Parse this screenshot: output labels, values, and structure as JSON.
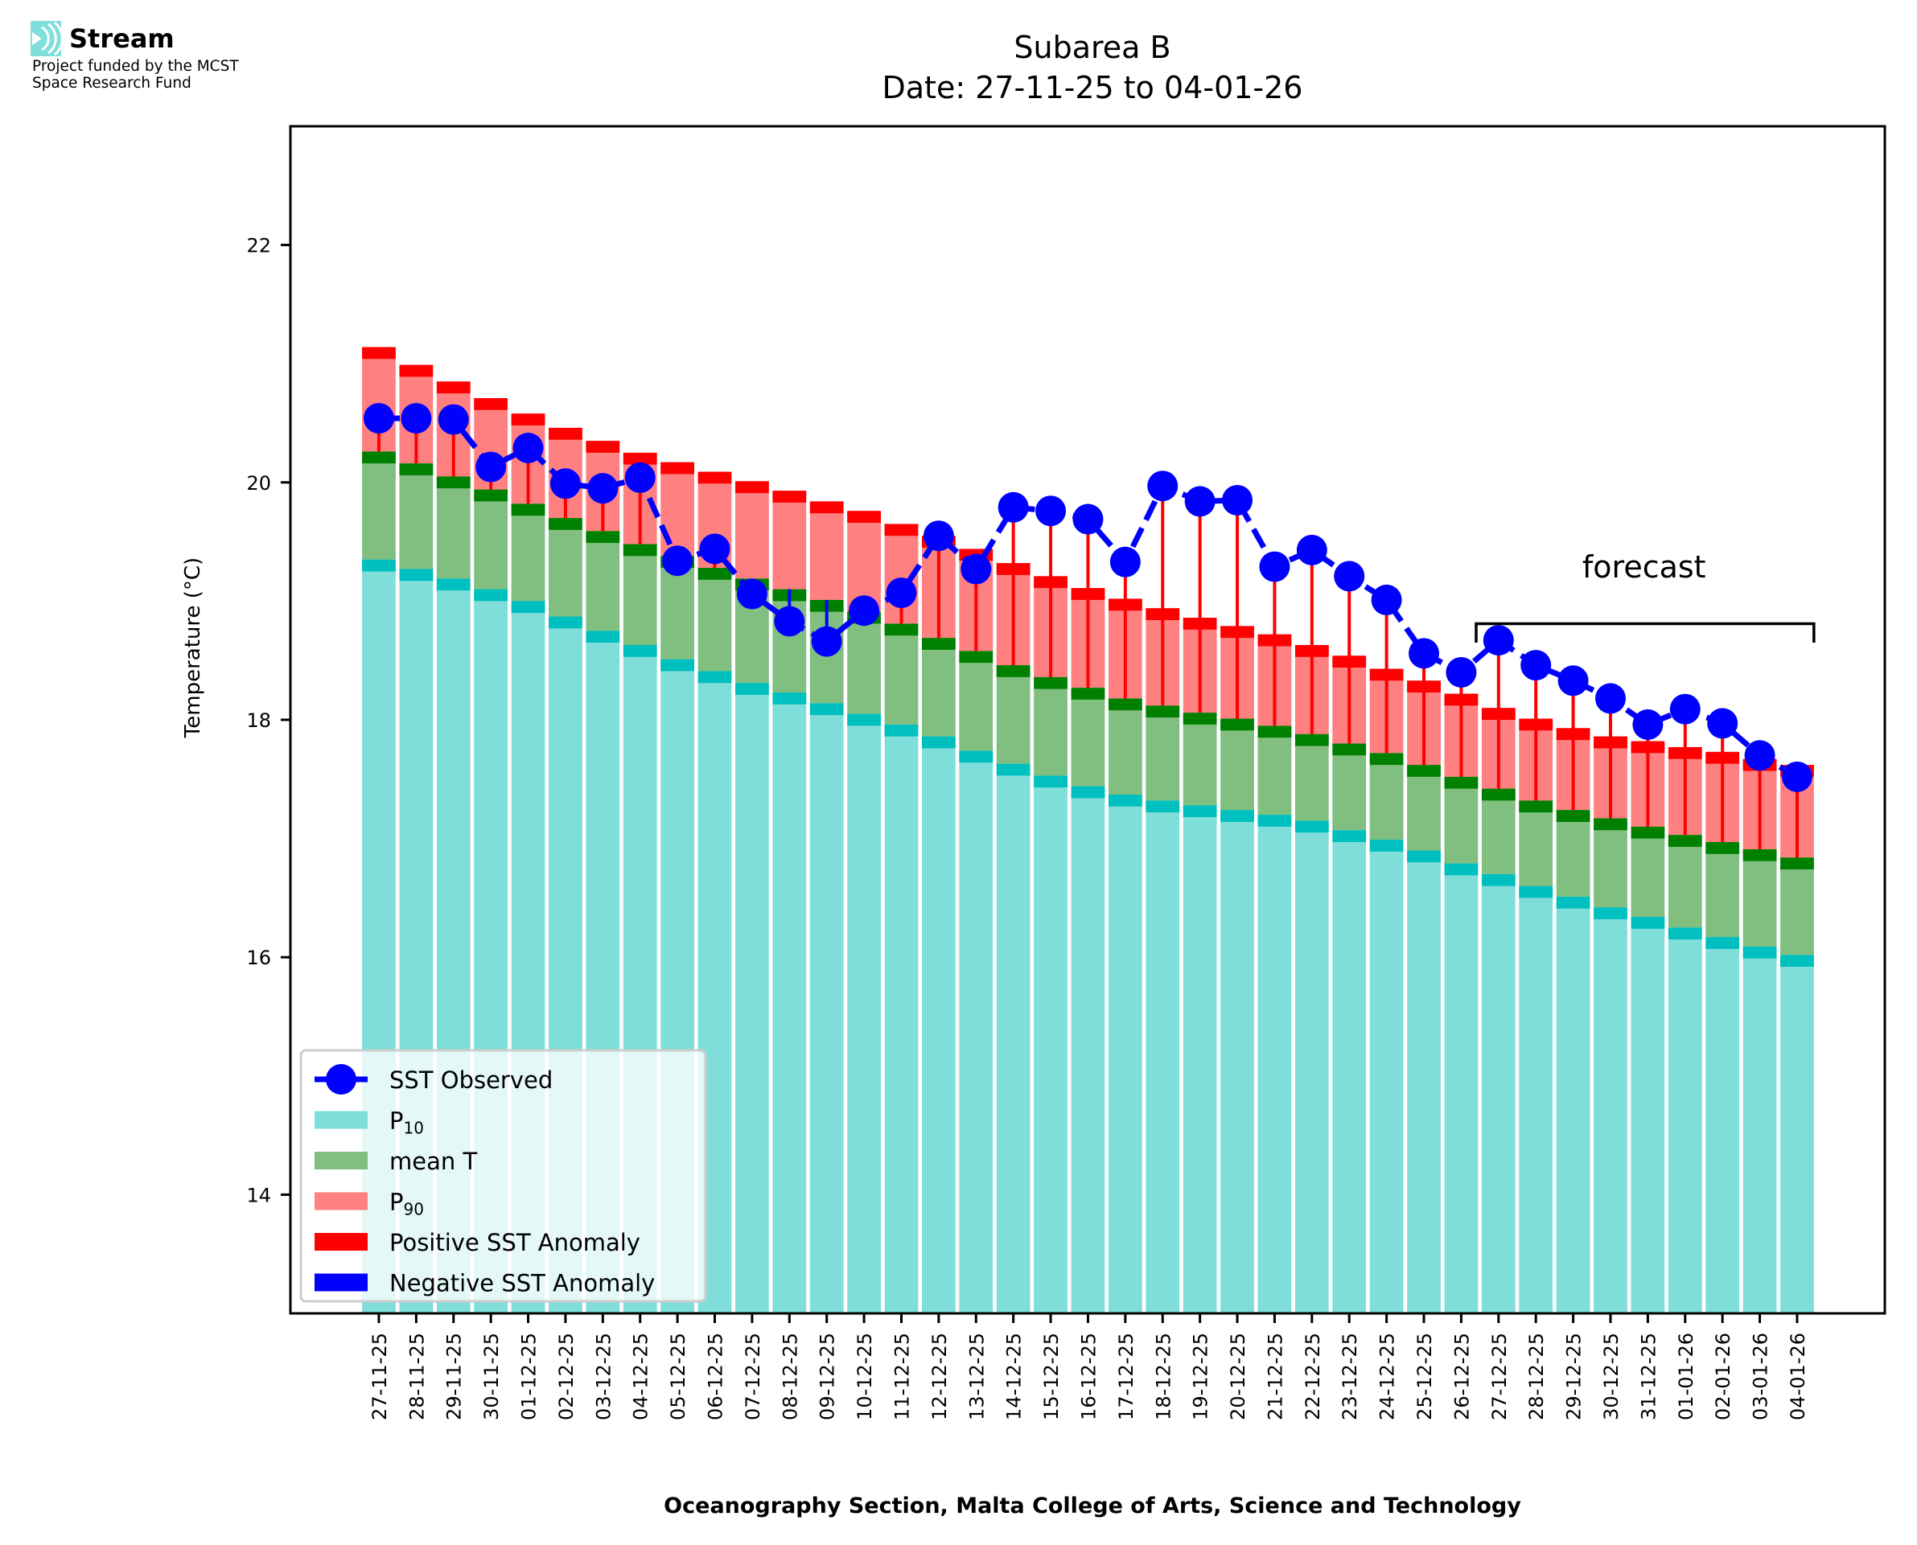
{
  "logo": {
    "brand_name": "Stream",
    "funding_line_1": "Project funded by the MCST",
    "funding_line_2": "Space Research Fund",
    "icon": "stream-waves-icon",
    "icon_color": "#7fdfdc"
  },
  "colors": {
    "p10": "#80deda",
    "p10_band": "#00bfbf",
    "mean": "#80bf80",
    "mean_band": "#008000",
    "p90": "#ff8080",
    "p90_band": "#ff0000",
    "positive_anomaly": "#ff0000",
    "negative_anomaly": "#0000ff",
    "observed": "#0000ff"
  },
  "chart_data": {
    "type": "bar",
    "title": "Subarea B",
    "subtitle": "Date: 27-11-25 to 04-01-26",
    "xlabel": "Oceanography Section, Malta College of Arts, Science and Technology",
    "ylabel": "Temperature (°C)",
    "ylim": [
      13,
      23
    ],
    "xlim": [
      -2.37,
      40.35
    ],
    "yticks": [
      14,
      16,
      18,
      20,
      22
    ],
    "grid": false,
    "legend_position": "lower-left",
    "categories": [
      "27-11-25",
      "28-11-25",
      "29-11-25",
      "30-11-25",
      "01-12-25",
      "02-12-25",
      "03-12-25",
      "04-12-25",
      "05-12-25",
      "06-12-25",
      "07-12-25",
      "08-12-25",
      "09-12-25",
      "10-12-25",
      "11-12-25",
      "12-12-25",
      "13-12-25",
      "14-12-25",
      "15-12-25",
      "16-12-25",
      "17-12-25",
      "18-12-25",
      "19-12-25",
      "20-12-25",
      "21-12-25",
      "22-12-25",
      "23-12-25",
      "24-12-25",
      "25-12-25",
      "26-12-25",
      "27-12-25",
      "28-12-25",
      "29-12-25",
      "30-12-25",
      "31-12-25",
      "01-01-26",
      "02-01-26",
      "03-01-26",
      "04-01-26"
    ],
    "band_thickness": 0.1,
    "series": [
      {
        "name": "SST Observed",
        "kind": "line",
        "values": [
          20.54,
          20.54,
          20.53,
          20.13,
          20.29,
          19.99,
          19.95,
          20.04,
          19.34,
          19.44,
          19.06,
          18.83,
          18.66,
          18.92,
          19.07,
          19.55,
          19.27,
          19.79,
          19.76,
          19.69,
          19.33,
          19.97,
          19.84,
          19.85,
          19.29,
          19.43,
          19.21,
          19.01,
          18.56,
          18.4,
          18.67,
          18.46,
          18.33,
          18.18,
          17.96,
          18.09,
          17.97,
          17.7,
          17.52
        ]
      },
      {
        "name": "P10",
        "kind": "bar",
        "values": [
          19.35,
          19.27,
          19.19,
          19.1,
          19.0,
          18.87,
          18.75,
          18.63,
          18.51,
          18.41,
          18.31,
          18.23,
          18.14,
          18.05,
          17.96,
          17.86,
          17.74,
          17.63,
          17.53,
          17.44,
          17.37,
          17.32,
          17.28,
          17.24,
          17.2,
          17.15,
          17.07,
          16.99,
          16.9,
          16.79,
          16.7,
          16.6,
          16.51,
          16.42,
          16.34,
          16.25,
          16.17,
          16.09,
          16.02
        ]
      },
      {
        "name": "mean T",
        "kind": "bar",
        "values": [
          20.26,
          20.16,
          20.05,
          19.94,
          19.82,
          19.7,
          19.59,
          19.48,
          19.38,
          19.28,
          19.19,
          19.1,
          19.01,
          18.91,
          18.81,
          18.69,
          18.58,
          18.46,
          18.36,
          18.27,
          18.18,
          18.12,
          18.06,
          18.01,
          17.95,
          17.88,
          17.8,
          17.72,
          17.62,
          17.52,
          17.42,
          17.32,
          17.24,
          17.17,
          17.1,
          17.03,
          16.97,
          16.91,
          16.84
        ]
      },
      {
        "name": "P90",
        "kind": "bar",
        "values": [
          21.14,
          20.99,
          20.85,
          20.71,
          20.58,
          20.46,
          20.35,
          20.25,
          20.17,
          20.09,
          20.01,
          19.93,
          19.84,
          19.76,
          19.65,
          19.55,
          19.44,
          19.32,
          19.21,
          19.11,
          19.02,
          18.94,
          18.86,
          18.79,
          18.72,
          18.63,
          18.54,
          18.43,
          18.33,
          18.22,
          18.1,
          18.01,
          17.93,
          17.86,
          17.82,
          17.77,
          17.73,
          17.67,
          17.62
        ]
      }
    ],
    "legend": [
      {
        "label": "SST Observed",
        "kind": "line-marker",
        "color": "#0000ff"
      },
      {
        "label": "P",
        "sub": "10",
        "kind": "patch",
        "color": "#80deda"
      },
      {
        "label": "mean T",
        "kind": "patch",
        "color": "#80bf80"
      },
      {
        "label": "P",
        "sub": "90",
        "kind": "patch",
        "color": "#ff8080"
      },
      {
        "label": "Positive SST Anomaly",
        "kind": "patch",
        "color": "#ff0000"
      },
      {
        "label": "Negative SST Anomaly",
        "kind": "patch",
        "color": "#0000ff"
      }
    ],
    "annotations": [
      {
        "text": "forecast",
        "type": "bracket",
        "x_start": 29.4,
        "x_end": 38.45,
        "y": 18.81,
        "y_tip": 18.65,
        "text_x": 33.9,
        "text_y": 19.2
      }
    ]
  }
}
